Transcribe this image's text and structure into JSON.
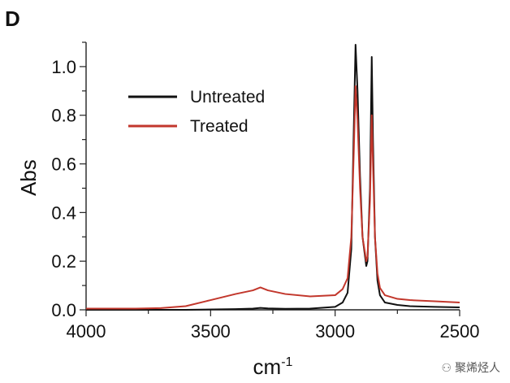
{
  "panel": {
    "label": "D"
  },
  "watermark": {
    "text": "聚烯烃人",
    "icon": "wechat-icon"
  },
  "chart_data": {
    "type": "line",
    "title": "",
    "xlabel": "cm",
    "xlabel_superscript": "-1",
    "ylabel": "Abs",
    "xlim": [
      4000,
      2500
    ],
    "x_reversed": true,
    "ylim": [
      0,
      1.1
    ],
    "x_ticks": [
      4000,
      3500,
      3000,
      2500
    ],
    "x_tick_labels": [
      "4000",
      "3500",
      "3000",
      "2500"
    ],
    "y_ticks": [
      0,
      0.2,
      0.4,
      0.6,
      0.8,
      1.0
    ],
    "y_tick_labels": [
      "0.0",
      "0.2",
      "0.4",
      "0.6",
      "0.8",
      "1.0"
    ],
    "legend_position": "top-left",
    "grid": false,
    "series": [
      {
        "name": "Untreated",
        "color": "#111111",
        "x": [
          4000,
          3800,
          3600,
          3400,
          3330,
          3300,
          3270,
          3200,
          3100,
          3000,
          2970,
          2950,
          2935,
          2925,
          2918,
          2910,
          2900,
          2890,
          2875,
          2870,
          2860,
          2853,
          2848,
          2840,
          2830,
          2820,
          2800,
          2750,
          2700,
          2600,
          2500
        ],
        "values": [
          0.0,
          0.0,
          0.0,
          0.003,
          0.005,
          0.008,
          0.006,
          0.004,
          0.005,
          0.012,
          0.03,
          0.07,
          0.25,
          0.75,
          1.09,
          0.9,
          0.55,
          0.3,
          0.18,
          0.2,
          0.5,
          1.04,
          0.7,
          0.3,
          0.12,
          0.06,
          0.03,
          0.02,
          0.015,
          0.012,
          0.01
        ]
      },
      {
        "name": "Treated",
        "color": "#c2372c",
        "x": [
          4000,
          3800,
          3700,
          3600,
          3500,
          3400,
          3330,
          3300,
          3270,
          3200,
          3100,
          3000,
          2970,
          2950,
          2935,
          2925,
          2918,
          2910,
          2900,
          2890,
          2875,
          2870,
          2860,
          2853,
          2848,
          2840,
          2830,
          2820,
          2800,
          2750,
          2700,
          2600,
          2500
        ],
        "values": [
          0.005,
          0.005,
          0.007,
          0.015,
          0.04,
          0.065,
          0.08,
          0.092,
          0.08,
          0.065,
          0.055,
          0.06,
          0.085,
          0.13,
          0.3,
          0.65,
          0.92,
          0.78,
          0.5,
          0.3,
          0.2,
          0.22,
          0.45,
          0.8,
          0.6,
          0.3,
          0.15,
          0.09,
          0.06,
          0.045,
          0.04,
          0.035,
          0.03
        ]
      }
    ]
  }
}
